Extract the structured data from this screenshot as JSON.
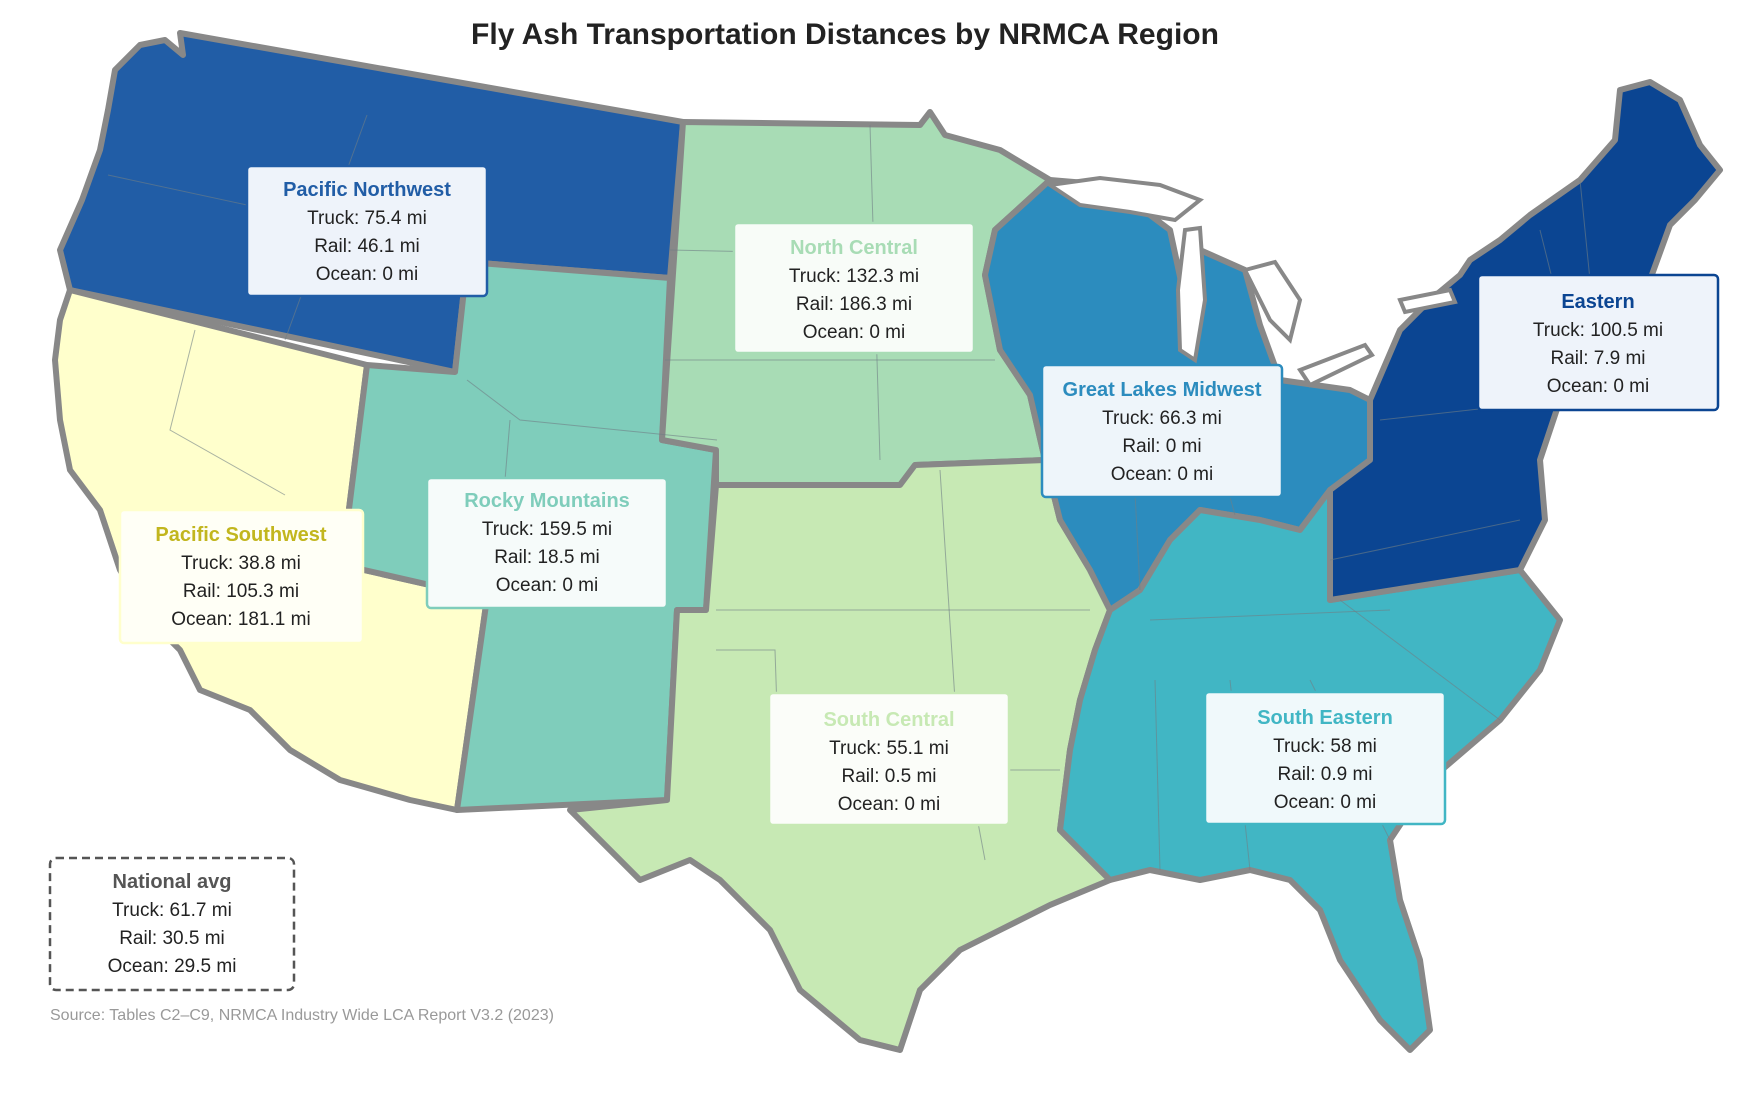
{
  "title": "Fly Ash Transportation Distances by NRMCA Region",
  "source": "Source: Tables C2–C9, NRMCA Industry Wide LCA Report V3.2 (2023)",
  "colors": {
    "pacific_northwest": "#215da6",
    "pacific_southwest": "#ffffcc",
    "rocky_mountains": "#7fcdbb",
    "north_central": "#a8dcb5",
    "south_central": "#c7e9b4",
    "great_lakes_midwest": "#2c8cbe",
    "south_eastern": "#41b6c4",
    "eastern": "#0b4592",
    "outline": "#888888"
  },
  "regions": [
    {
      "key": "pacific_northwest",
      "name": "Pacific Northwest",
      "truck": "Truck: 75.4 mi",
      "rail": "Rail: 46.1 mi",
      "ocean": "Ocean: 0 mi",
      "name_color": "#215da6"
    },
    {
      "key": "north_central",
      "name": "North Central",
      "truck": "Truck: 132.3 mi",
      "rail": "Rail: 186.3 mi",
      "ocean": "Ocean: 0 mi",
      "name_color": "#a8dcb5"
    },
    {
      "key": "eastern",
      "name": "Eastern",
      "truck": "Truck: 100.5 mi",
      "rail": "Rail: 7.9 mi",
      "ocean": "Ocean: 0 mi",
      "name_color": "#0b4592"
    },
    {
      "key": "great_lakes_midwest",
      "name": "Great Lakes Midwest",
      "truck": "Truck: 66.3 mi",
      "rail": "Rail: 0 mi",
      "ocean": "Ocean: 0 mi",
      "name_color": "#2c8cbe"
    },
    {
      "key": "rocky_mountains",
      "name": "Rocky Mountains",
      "truck": "Truck: 159.5 mi",
      "rail": "Rail: 18.5 mi",
      "ocean": "Ocean: 0 mi",
      "name_color": "#7fcdbb"
    },
    {
      "key": "pacific_southwest",
      "name": "Pacific Southwest",
      "truck": "Truck: 38.8 mi",
      "rail": "Rail: 105.3 mi",
      "ocean": "Ocean: 181.1 mi",
      "name_color": "#c2b61e"
    },
    {
      "key": "south_central",
      "name": "South Central",
      "truck": "Truck: 55.1 mi",
      "rail": "Rail: 0.5 mi",
      "ocean": "Ocean: 0 mi",
      "name_color": "#c7e9b4"
    },
    {
      "key": "south_eastern",
      "name": "South Eastern",
      "truck": "Truck: 58 mi",
      "rail": "Rail: 0.9 mi",
      "ocean": "Ocean: 0 mi",
      "name_color": "#41b6c4"
    }
  ],
  "national": {
    "name": "National avg",
    "truck": "Truck: 61.7 mi",
    "rail": "Rail: 30.5 mi",
    "ocean": "Ocean: 29.5 mi"
  }
}
